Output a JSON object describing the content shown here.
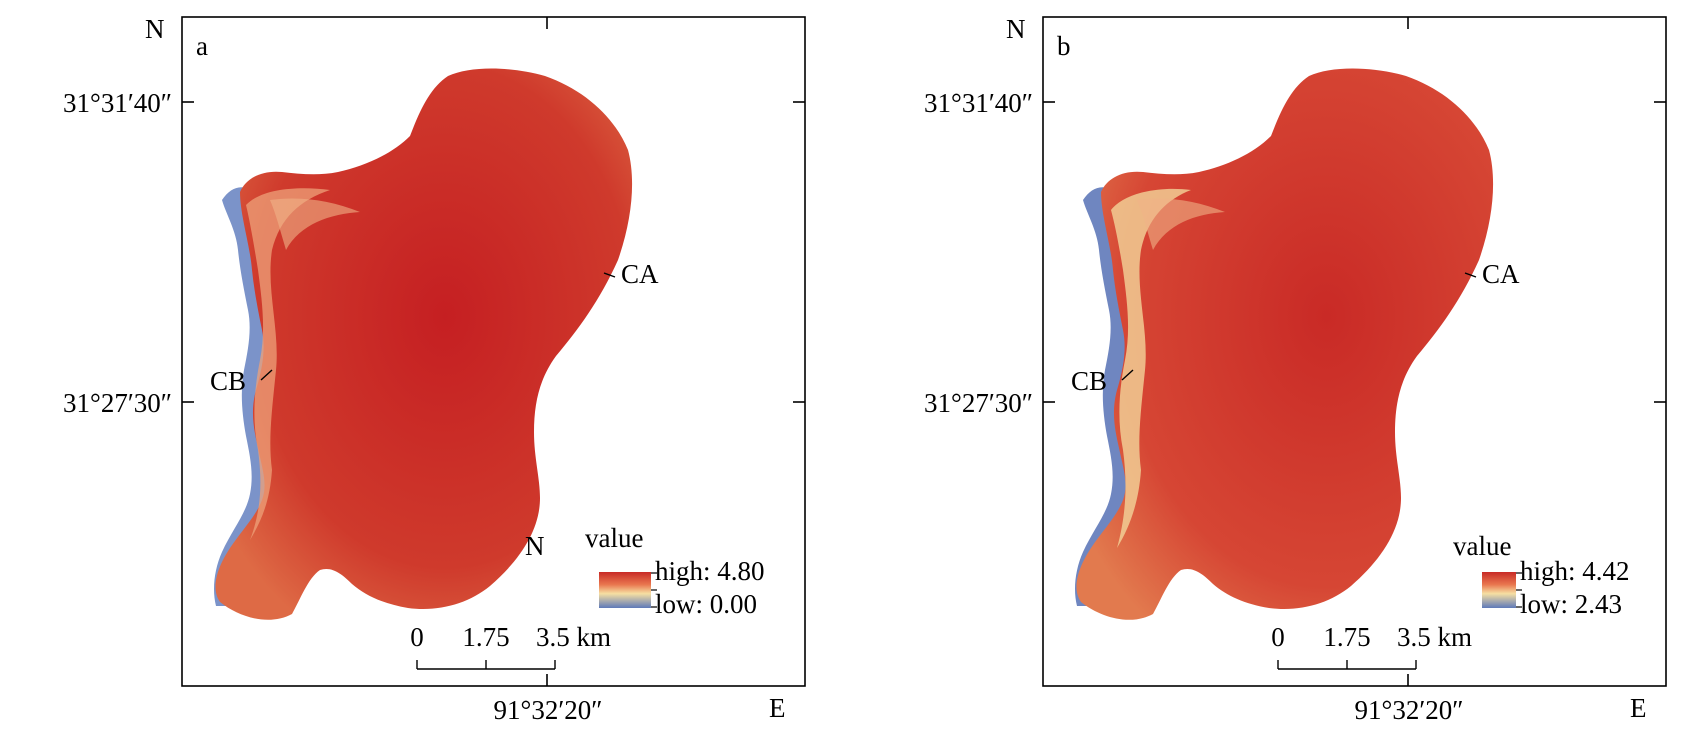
{
  "panels": [
    {
      "id": "a",
      "panel_label": "a",
      "north_top": "N",
      "north_arrow": "N",
      "east": "E",
      "lat_labels": [
        "31°31′40″",
        "31°27′30″"
      ],
      "lon_label": "91°32′20″",
      "site_labels": [
        "CA",
        "CB"
      ],
      "legend": {
        "title": "value",
        "high": "high: 4.80",
        "low": "low: 0.00"
      },
      "scalebar": {
        "ticks": [
          "0",
          "1.75",
          "3.5 km"
        ]
      },
      "shore_color": "#7b93c9"
    },
    {
      "id": "b",
      "panel_label": "b",
      "north_top": "N",
      "east": "E",
      "lat_labels": [
        "31°31′40″",
        "31°27′30″"
      ],
      "lon_label": "91°32′20″",
      "site_labels": [
        "CA",
        "CB"
      ],
      "legend": {
        "title": "value",
        "high": "high: 4.42",
        "low": "low: 2.43"
      },
      "scalebar": {
        "ticks": [
          "0",
          "1.75",
          "3.5 km"
        ]
      },
      "shore_color": "#6f86c0"
    }
  ],
  "colors": {
    "high": "#c82a26",
    "mid": "#f3c98c",
    "low": "#5e79b9"
  }
}
